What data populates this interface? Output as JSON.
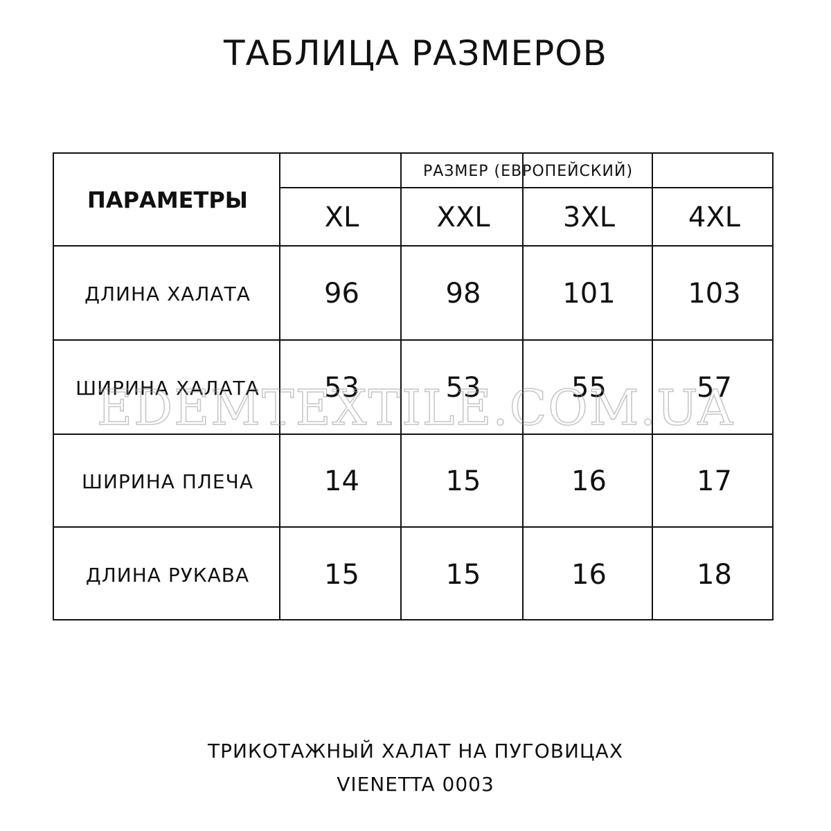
{
  "title": "ТАБЛИЦА РАЗМЕРОВ",
  "table": {
    "params_header": "ПАРАМЕТРЫ",
    "size_header": "РАЗМЕР (ЕВРОПЕЙСКИЙ)",
    "sizes": [
      "XL",
      "XXL",
      "3XL",
      "4XL"
    ],
    "rows": [
      {
        "label": "ДЛИНА ХАЛАТА",
        "values": [
          "96",
          "98",
          "101",
          "103"
        ]
      },
      {
        "label": "ШИРИНА ХАЛАТА",
        "values": [
          "53",
          "53",
          "55",
          "57"
        ]
      },
      {
        "label": "ШИРИНА ПЛЕЧА",
        "values": [
          "14",
          "15",
          "16",
          "17"
        ]
      },
      {
        "label": "ДЛИНА РУКАВА",
        "values": [
          "15",
          "15",
          "16",
          "18"
        ]
      }
    ]
  },
  "watermark": "EDEMTEXTILE.COM.UA",
  "footer": {
    "line1": "ТРИКОТАЖНЫЙ ХАЛАТ НА ПУГОВИЦАХ",
    "line2": "VIENETTA 0003"
  }
}
